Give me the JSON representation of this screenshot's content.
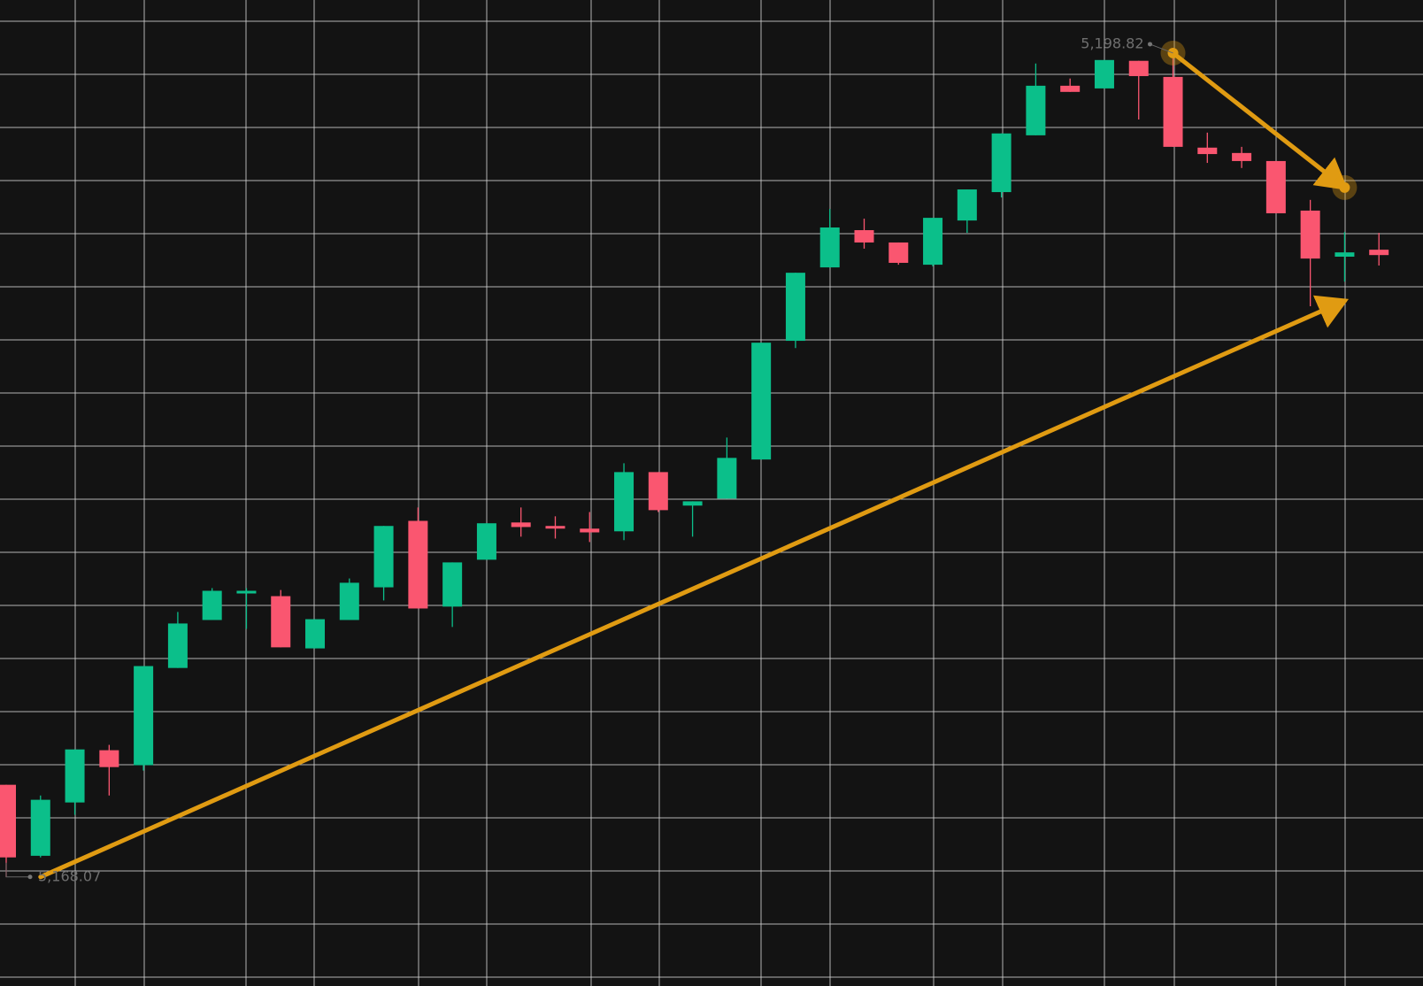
{
  "chart_data": {
    "type": "candlestick",
    "ylim": [
      5164.0,
      5200.8
    ],
    "up_color": "#0bbf8a",
    "down_color": "#fa5670",
    "open": [
      5171.51,
      5168.86,
      5170.85,
      5172.8,
      5172.24,
      5175.87,
      5177.66,
      5178.65,
      5178.55,
      5176.6,
      5177.66,
      5178.88,
      5181.36,
      5178.16,
      5179.91,
      5181.3,
      5181.17,
      5181.07,
      5180.97,
      5183.18,
      5181.93,
      5182.19,
      5183.65,
      5188.08,
      5190.82,
      5192.21,
      5191.75,
      5190.92,
      5192.57,
      5193.63,
      5195.75,
      5197.6,
      5197.5,
      5198.53,
      5197.93,
      5195.29,
      5195.09,
      5194.79,
      5192.94,
      5191.22,
      5191.48
    ],
    "high": [
      5171.51,
      5171.11,
      5172.83,
      5173.0,
      5175.94,
      5177.96,
      5178.85,
      5178.85,
      5178.78,
      5177.69,
      5179.21,
      5181.17,
      5181.86,
      5179.81,
      5181.27,
      5181.86,
      5181.53,
      5181.69,
      5183.51,
      5183.18,
      5182.09,
      5184.47,
      5188.01,
      5190.62,
      5193.0,
      5192.64,
      5191.75,
      5192.67,
      5193.73,
      5195.82,
      5198.43,
      5197.87,
      5198.56,
      5198.53,
      5198.82,
      5195.85,
      5195.32,
      5194.79,
      5193.34,
      5192.14,
      5192.11
    ],
    "low": [
      5168.07,
      5168.8,
      5170.39,
      5171.11,
      5172.04,
      5175.87,
      5177.66,
      5177.33,
      5176.64,
      5176.6,
      5177.66,
      5178.39,
      5178.09,
      5177.4,
      5179.91,
      5180.77,
      5180.7,
      5180.57,
      5180.64,
      5181.69,
      5180.77,
      5182.19,
      5183.65,
      5187.81,
      5190.82,
      5191.52,
      5190.92,
      5190.86,
      5192.11,
      5193.43,
      5195.75,
      5197.37,
      5197.5,
      5196.34,
      5195.32,
      5194.72,
      5194.53,
      5192.84,
      5189.37,
      5190.29,
      5190.89
    ],
    "close": [
      5168.8,
      5170.95,
      5172.83,
      5172.17,
      5175.94,
      5177.53,
      5178.75,
      5178.75,
      5176.64,
      5177.69,
      5179.05,
      5181.17,
      5178.09,
      5179.81,
      5181.27,
      5181.13,
      5181.1,
      5180.93,
      5183.18,
      5181.76,
      5182.09,
      5183.71,
      5188.01,
      5190.62,
      5192.31,
      5191.75,
      5190.99,
      5192.67,
      5193.73,
      5195.82,
      5197.6,
      5197.37,
      5198.56,
      5197.96,
      5195.32,
      5195.05,
      5194.79,
      5192.84,
      5191.15,
      5191.38,
      5191.28
    ],
    "annotations": [
      {
        "label": "5,198.82",
        "value": 5198.82,
        "x": 34
      },
      {
        "label": "5,168.07",
        "value": 5168.07,
        "x": 0
      }
    ],
    "arrows": [
      {
        "x": [
          1,
          39
        ],
        "y": [
          5168.07,
          5189.57
        ],
        "color": "#e09b12"
      },
      {
        "x": [
          34,
          39
        ],
        "y": [
          5198.82,
          5193.8
        ],
        "color": "#e09b12"
      }
    ]
  }
}
